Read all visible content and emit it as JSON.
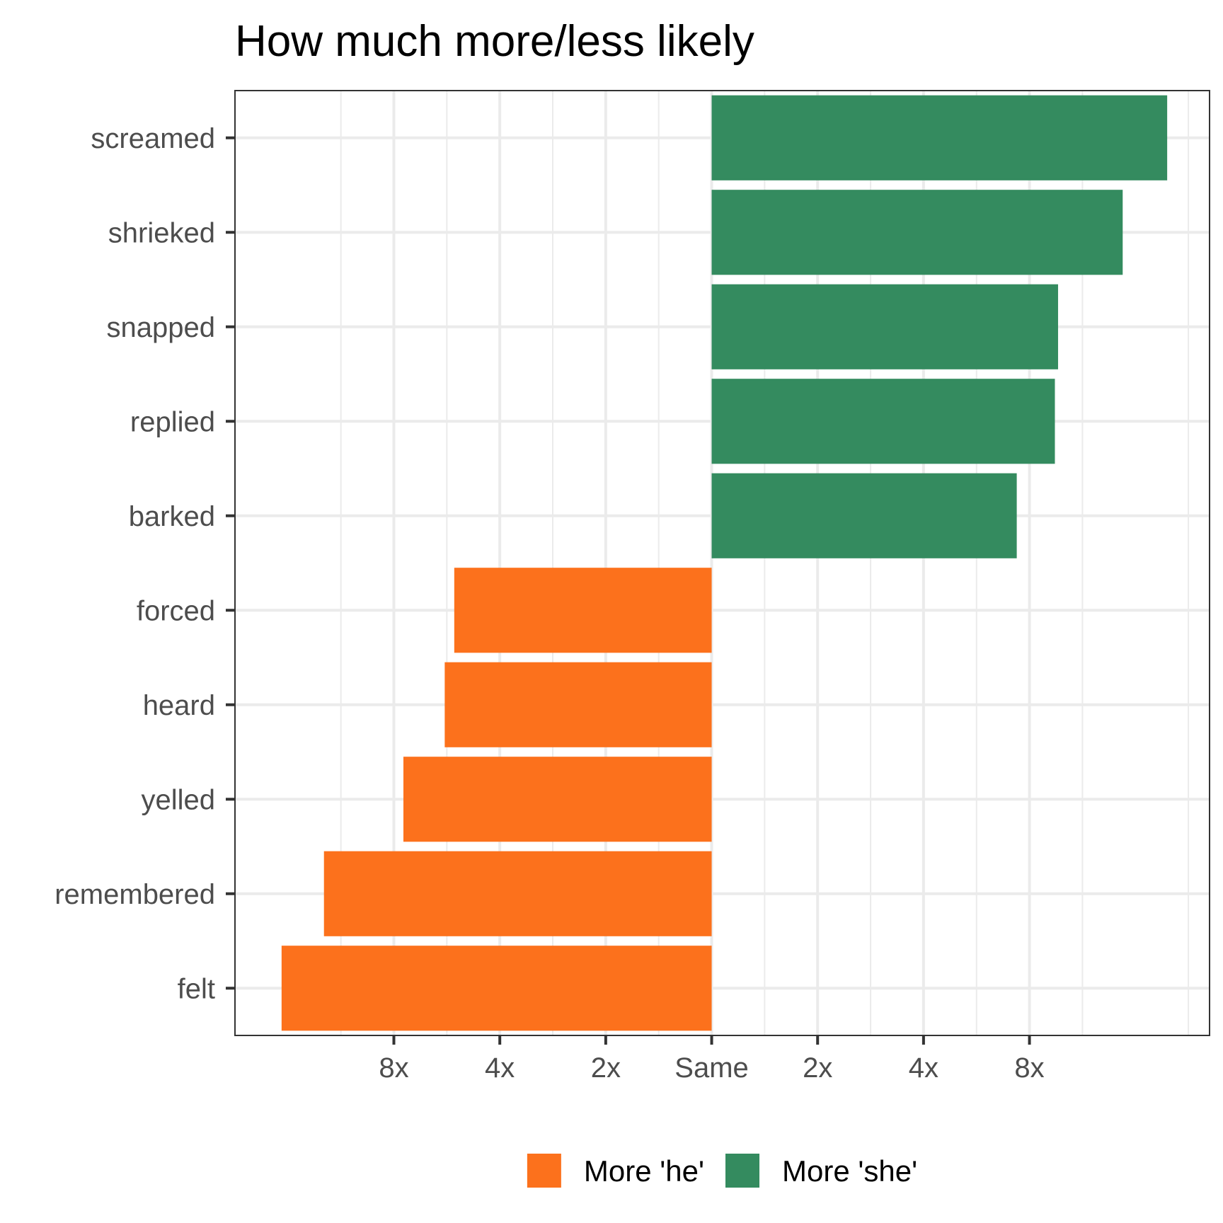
{
  "chart_data": {
    "type": "bar",
    "orientation": "horizontal",
    "title": "How much more/less likely",
    "xlabel": "",
    "ylabel": "",
    "scale": "log2 ratio",
    "categories": [
      "screamed",
      "shrieked",
      "snapped",
      "replied",
      "barked",
      "forced",
      "heard",
      "yelled",
      "remembered",
      "felt"
    ],
    "values": [
      4.3,
      3.88,
      3.27,
      3.24,
      2.88,
      -2.43,
      -2.52,
      -2.91,
      -3.66,
      -4.06
    ],
    "direction": [
      "she",
      "she",
      "she",
      "she",
      "she",
      "he",
      "he",
      "he",
      "he",
      "he"
    ],
    "xlim": [
      -4.5,
      4.7
    ],
    "xticks": [
      {
        "value": -3,
        "label": "8x"
      },
      {
        "value": -2,
        "label": "4x"
      },
      {
        "value": -1,
        "label": "2x"
      },
      {
        "value": 0,
        "label": "Same"
      },
      {
        "value": 1,
        "label": "2x"
      },
      {
        "value": 2,
        "label": "4x"
      },
      {
        "value": 3,
        "label": "8x"
      }
    ],
    "grid": true,
    "legend": {
      "placement": "bottom",
      "items": [
        {
          "key": "he",
          "label": "More 'he'",
          "color": "#FC711C"
        },
        {
          "key": "she",
          "label": "More 'she'",
          "color": "#348B5F"
        }
      ]
    }
  }
}
